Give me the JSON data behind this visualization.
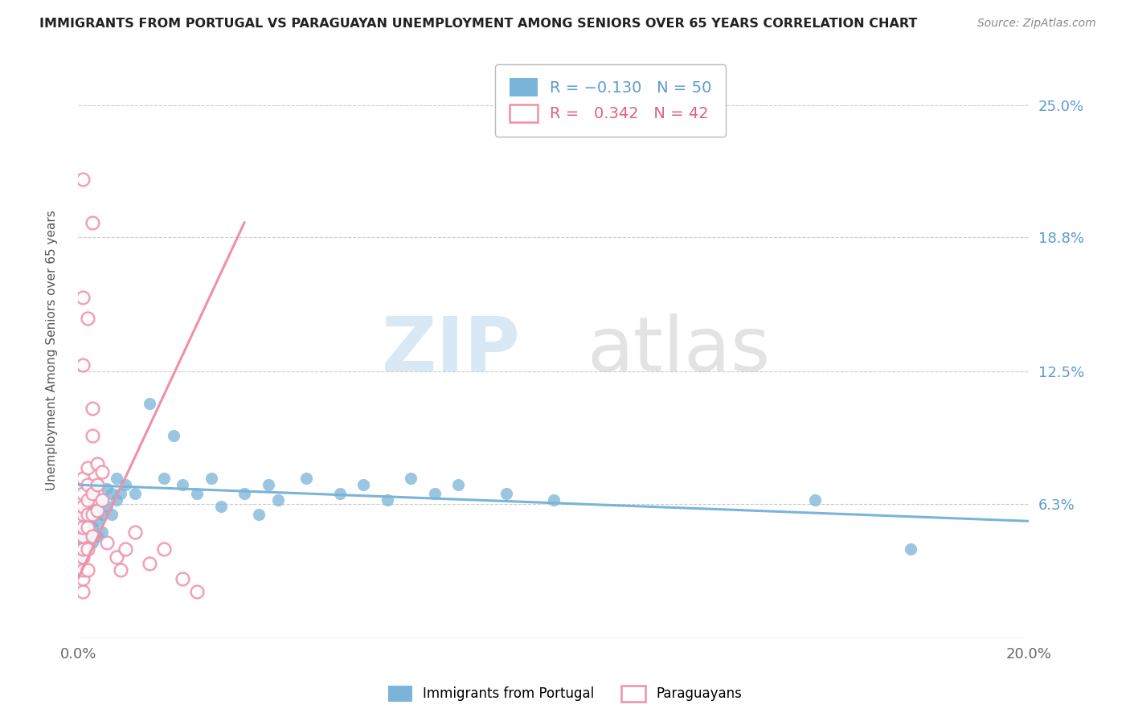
{
  "title": "IMMIGRANTS FROM PORTUGAL VS PARAGUAYAN UNEMPLOYMENT AMONG SENIORS OVER 65 YEARS CORRELATION CHART",
  "source": "Source: ZipAtlas.com",
  "ylabel": "Unemployment Among Seniors over 65 years",
  "xlim": [
    0.0,
    0.2
  ],
  "ylim": [
    0.0,
    0.27
  ],
  "ytick_labels": [
    "6.3%",
    "12.5%",
    "18.8%",
    "25.0%"
  ],
  "ytick_values": [
    0.063,
    0.125,
    0.188,
    0.25
  ],
  "blue_R": -0.13,
  "blue_N": 50,
  "pink_R": 0.342,
  "pink_N": 42,
  "blue_color": "#7ab4d8",
  "pink_color": "#f090a8",
  "blue_scatter": [
    [
      0.001,
      0.058
    ],
    [
      0.001,
      0.05
    ],
    [
      0.001,
      0.045
    ],
    [
      0.001,
      0.038
    ],
    [
      0.002,
      0.062
    ],
    [
      0.002,
      0.055
    ],
    [
      0.002,
      0.048
    ],
    [
      0.002,
      0.042
    ],
    [
      0.003,
      0.068
    ],
    [
      0.003,
      0.058
    ],
    [
      0.003,
      0.052
    ],
    [
      0.003,
      0.045
    ],
    [
      0.004,
      0.072
    ],
    [
      0.004,
      0.06
    ],
    [
      0.004,
      0.055
    ],
    [
      0.004,
      0.048
    ],
    [
      0.005,
      0.065
    ],
    [
      0.005,
      0.058
    ],
    [
      0.005,
      0.05
    ],
    [
      0.006,
      0.07
    ],
    [
      0.006,
      0.062
    ],
    [
      0.007,
      0.068
    ],
    [
      0.007,
      0.058
    ],
    [
      0.008,
      0.075
    ],
    [
      0.008,
      0.065
    ],
    [
      0.009,
      0.068
    ],
    [
      0.01,
      0.072
    ],
    [
      0.012,
      0.068
    ],
    [
      0.015,
      0.11
    ],
    [
      0.018,
      0.075
    ],
    [
      0.02,
      0.095
    ],
    [
      0.022,
      0.072
    ],
    [
      0.025,
      0.068
    ],
    [
      0.028,
      0.075
    ],
    [
      0.03,
      0.062
    ],
    [
      0.035,
      0.068
    ],
    [
      0.038,
      0.058
    ],
    [
      0.04,
      0.072
    ],
    [
      0.042,
      0.065
    ],
    [
      0.048,
      0.075
    ],
    [
      0.055,
      0.068
    ],
    [
      0.06,
      0.072
    ],
    [
      0.065,
      0.065
    ],
    [
      0.07,
      0.075
    ],
    [
      0.075,
      0.068
    ],
    [
      0.08,
      0.072
    ],
    [
      0.09,
      0.068
    ],
    [
      0.1,
      0.065
    ],
    [
      0.155,
      0.065
    ],
    [
      0.175,
      0.042
    ]
  ],
  "pink_scatter": [
    [
      0.001,
      0.022
    ],
    [
      0.001,
      0.028
    ],
    [
      0.001,
      0.032
    ],
    [
      0.001,
      0.038
    ],
    [
      0.001,
      0.042
    ],
    [
      0.001,
      0.048
    ],
    [
      0.001,
      0.052
    ],
    [
      0.001,
      0.058
    ],
    [
      0.001,
      0.062
    ],
    [
      0.001,
      0.068
    ],
    [
      0.001,
      0.075
    ],
    [
      0.002,
      0.032
    ],
    [
      0.002,
      0.042
    ],
    [
      0.002,
      0.052
    ],
    [
      0.002,
      0.058
    ],
    [
      0.002,
      0.065
    ],
    [
      0.002,
      0.072
    ],
    [
      0.002,
      0.08
    ],
    [
      0.003,
      0.048
    ],
    [
      0.003,
      0.058
    ],
    [
      0.003,
      0.068
    ],
    [
      0.003,
      0.095
    ],
    [
      0.003,
      0.108
    ],
    [
      0.004,
      0.06
    ],
    [
      0.004,
      0.072
    ],
    [
      0.004,
      0.082
    ],
    [
      0.005,
      0.065
    ],
    [
      0.005,
      0.078
    ],
    [
      0.006,
      0.045
    ],
    [
      0.008,
      0.038
    ],
    [
      0.009,
      0.032
    ],
    [
      0.01,
      0.042
    ],
    [
      0.012,
      0.05
    ],
    [
      0.015,
      0.035
    ],
    [
      0.018,
      0.042
    ],
    [
      0.022,
      0.028
    ],
    [
      0.025,
      0.022
    ],
    [
      0.003,
      0.195
    ],
    [
      0.001,
      0.215
    ],
    [
      0.001,
      0.16
    ],
    [
      0.002,
      0.15
    ],
    [
      0.001,
      0.128
    ]
  ],
  "pink_line_x": [
    0.0,
    0.035
  ],
  "pink_line_y": [
    0.028,
    0.195
  ],
  "blue_line_x": [
    0.0,
    0.2
  ],
  "blue_line_y": [
    0.072,
    0.055
  ],
  "watermark_zip": "ZIP",
  "watermark_atlas": "atlas",
  "background_color": "#ffffff",
  "grid_color": "#dddddd"
}
